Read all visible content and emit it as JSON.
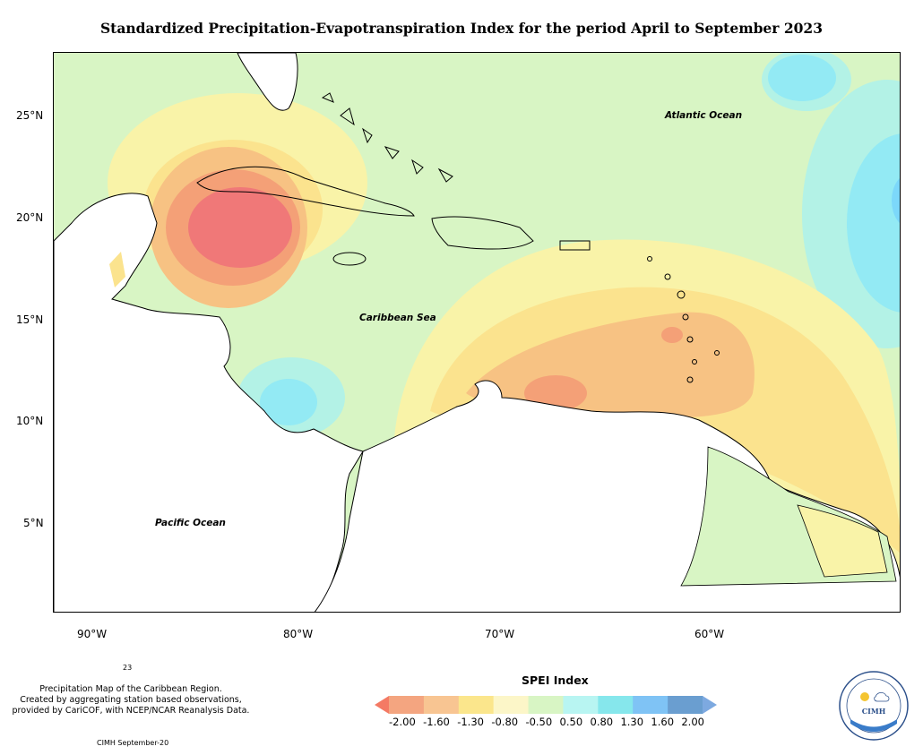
{
  "title": "Standardized Precipitation-Evapotranspiration Index for the period April to September 2023",
  "map": {
    "lat_labels": [
      "25°N",
      "20°N",
      "15°N",
      "10°N",
      "5°N"
    ],
    "lon_labels": [
      "90°W",
      "80°W",
      "70°W",
      "60°W"
    ],
    "ocean_labels": {
      "atlantic": "Atlantic Ocean",
      "caribbean": "Caribbean Sea",
      "pacific": "Pacific Ocean"
    },
    "colors": {
      "near_normal": "#d8f5c4",
      "mild_dry": "#f9f3a8",
      "light_dry": "#fbe38e",
      "moderate_dry": "#f7c283",
      "severe_dry": "#f4a077",
      "extreme_dry": "#f07878",
      "light_wet": "#b3f2e6",
      "moderate_wet": "#93eaf4",
      "very_wet": "#7cd8fa"
    }
  },
  "footer": {
    "small_number": "23",
    "note_lines": [
      "Precipitation Map of the Caribbean Region.",
      "Created by aggregating station based observations,",
      "provided by CariCOF, with NCEP/NCAR Reanalysis Data."
    ],
    "credit": "CIMH September-20"
  },
  "legend": {
    "title": "SPEI Index",
    "ticks": [
      "-2.00",
      "-1.60",
      "-1.30",
      "-0.80",
      "-0.50",
      "0.50",
      "0.80",
      "1.30",
      "1.60",
      "2.00"
    ],
    "colors": [
      "#f47a64",
      "#f4a580",
      "#f8c592",
      "#fbe68c",
      "#fcf6c8",
      "#d8f5c4",
      "#b8f5f2",
      "#86e7ec",
      "#7fc3f5",
      "#6a9ed0",
      "#7da9e0"
    ]
  },
  "logo": {
    "text": "CIMH"
  }
}
